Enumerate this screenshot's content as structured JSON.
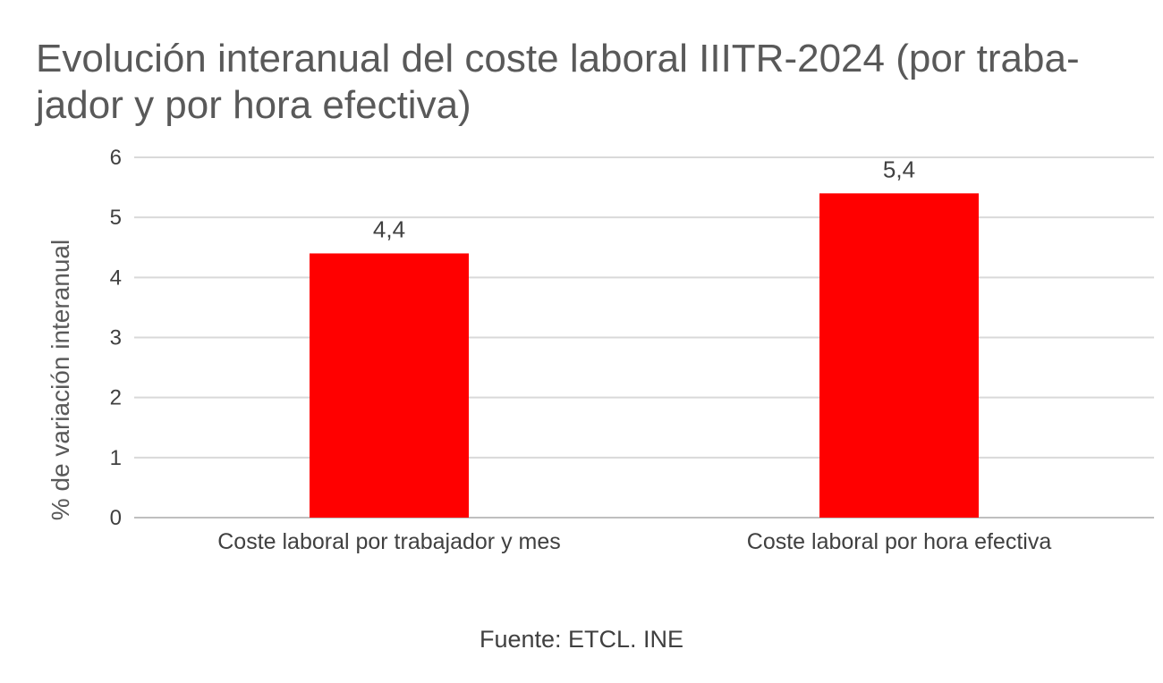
{
  "chart_data": {
    "type": "bar",
    "title": "Evolución interanual del coste laboral IIITR-2024 (por traba-jador y por hora efectiva)",
    "title_line1": "Evolución interanual del coste laboral IIITR-2024 (por traba-",
    "title_line2": "jador y por hora efectiva)",
    "xlabel": "",
    "ylabel": "% de variación interanual",
    "categories": [
      "Coste laboral por trabajador y mes",
      "Coste laboral por hora efectiva"
    ],
    "values": [
      4.4,
      5.4
    ],
    "value_labels": [
      "4,4",
      "5,4"
    ],
    "ylim": [
      0,
      6
    ],
    "yticks": [
      0,
      1,
      2,
      3,
      4,
      5,
      6
    ],
    "grid": true,
    "legend": "none",
    "bar_color": "#ff0000",
    "grid_color": "#d9d9d9",
    "source": "Fuente: ETCL. INE"
  }
}
